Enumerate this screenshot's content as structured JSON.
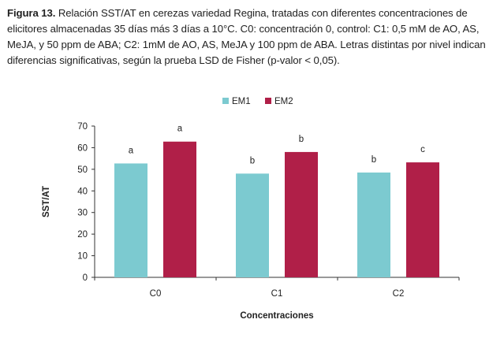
{
  "caption": {
    "label": "Figura 13.",
    "text": "Relación SST/AT en cerezas variedad Regina, tratadas con diferentes concentraciones de elicitores almacenadas 35 días más 3 días a 10°C. C0: concentración 0, control: C1: 0,5 mM de AO, AS, MeJA, y 50 ppm de ABA; C2: 1mM de AO, AS, MeJA y 100 ppm de ABA. Letras distintas por nivel indican diferencias significativas, según la prueba LSD de Fisher (p-valor < 0,05)."
  },
  "chart_data": {
    "type": "bar",
    "title": "",
    "xlabel": "Concentraciones",
    "ylabel": "SST/AT",
    "ylim": [
      0,
      70
    ],
    "yticks": [
      0,
      10,
      20,
      30,
      40,
      50,
      60,
      70
    ],
    "categories": [
      "C0",
      "C1",
      "C2"
    ],
    "legend_position": "top-center",
    "grid": false,
    "series": [
      {
        "name": "EM1",
        "color": "#7ccad0",
        "values": [
          52.7,
          48.0,
          48.5
        ],
        "letters": [
          "a",
          "b",
          "b"
        ]
      },
      {
        "name": "EM2",
        "color": "#b01f48",
        "values": [
          62.8,
          58.0,
          53.2
        ],
        "letters": [
          "a",
          "b",
          "c"
        ]
      }
    ]
  }
}
